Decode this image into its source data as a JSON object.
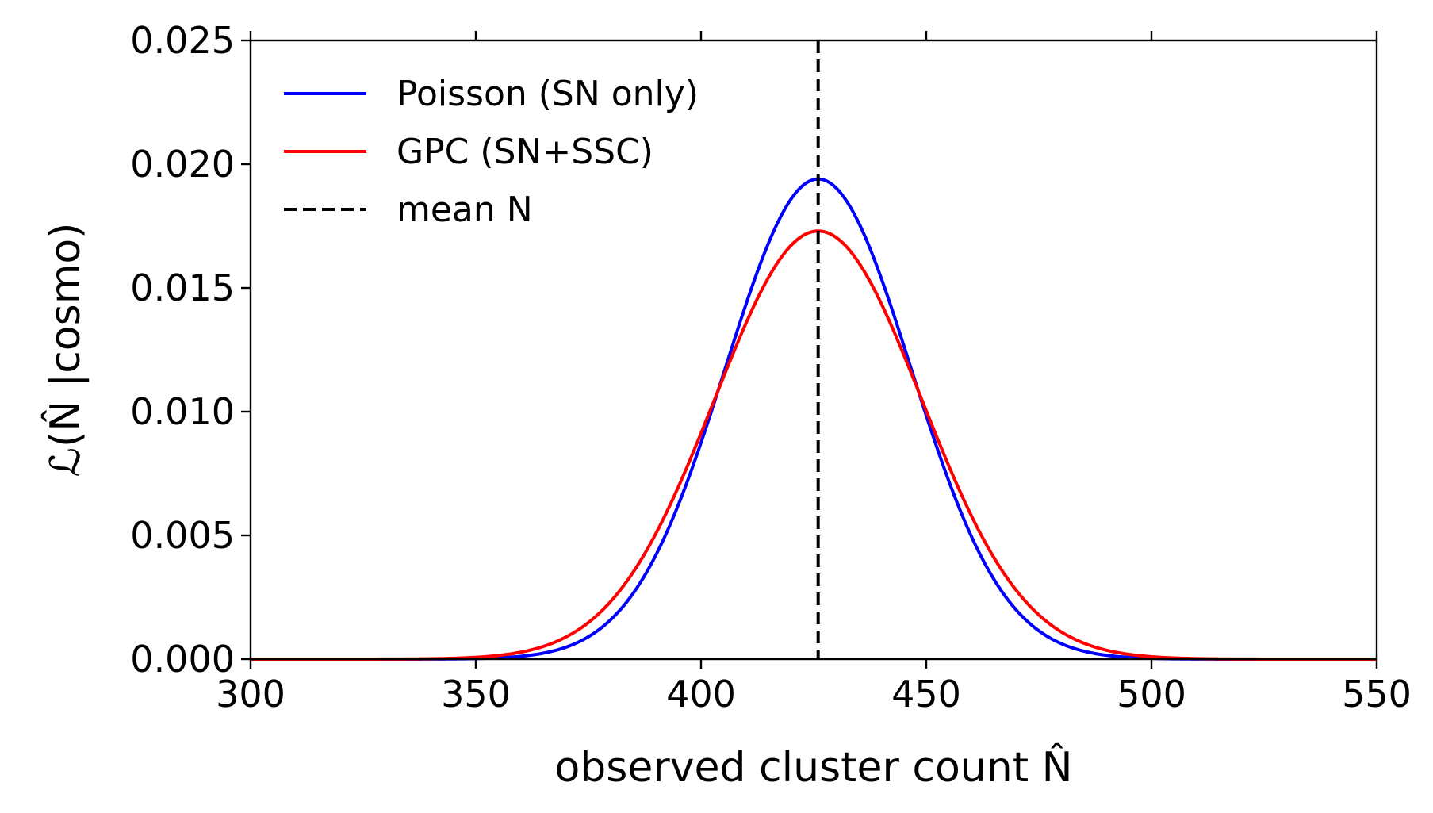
{
  "chart_data": {
    "type": "line",
    "xlabel": "observed cluster count N̂",
    "ylabel": "ℒ(N̂ |cosmo)",
    "xlim": [
      300,
      550
    ],
    "ylim": [
      0,
      0.025
    ],
    "x_ticks": [
      "300",
      "350",
      "400",
      "450",
      "500",
      "550"
    ],
    "y_ticks": [
      "0.000",
      "0.005",
      "0.010",
      "0.015",
      "0.020",
      "0.025"
    ],
    "grid": false,
    "legend_position": "top-left",
    "series": [
      {
        "name": "Poisson (SN only)",
        "color": "#0000ff",
        "distribution": "gaussian",
        "mean": 426,
        "sigma": 20.6,
        "peak": 0.0194
      },
      {
        "name": "GPC (SN+SSC)",
        "color": "#ff0000",
        "distribution": "gaussian",
        "mean": 426,
        "sigma": 23.0,
        "peak": 0.0173
      }
    ],
    "reference_line": {
      "name": "mean N",
      "x": 426,
      "color": "#000000",
      "style": "dashed"
    }
  }
}
